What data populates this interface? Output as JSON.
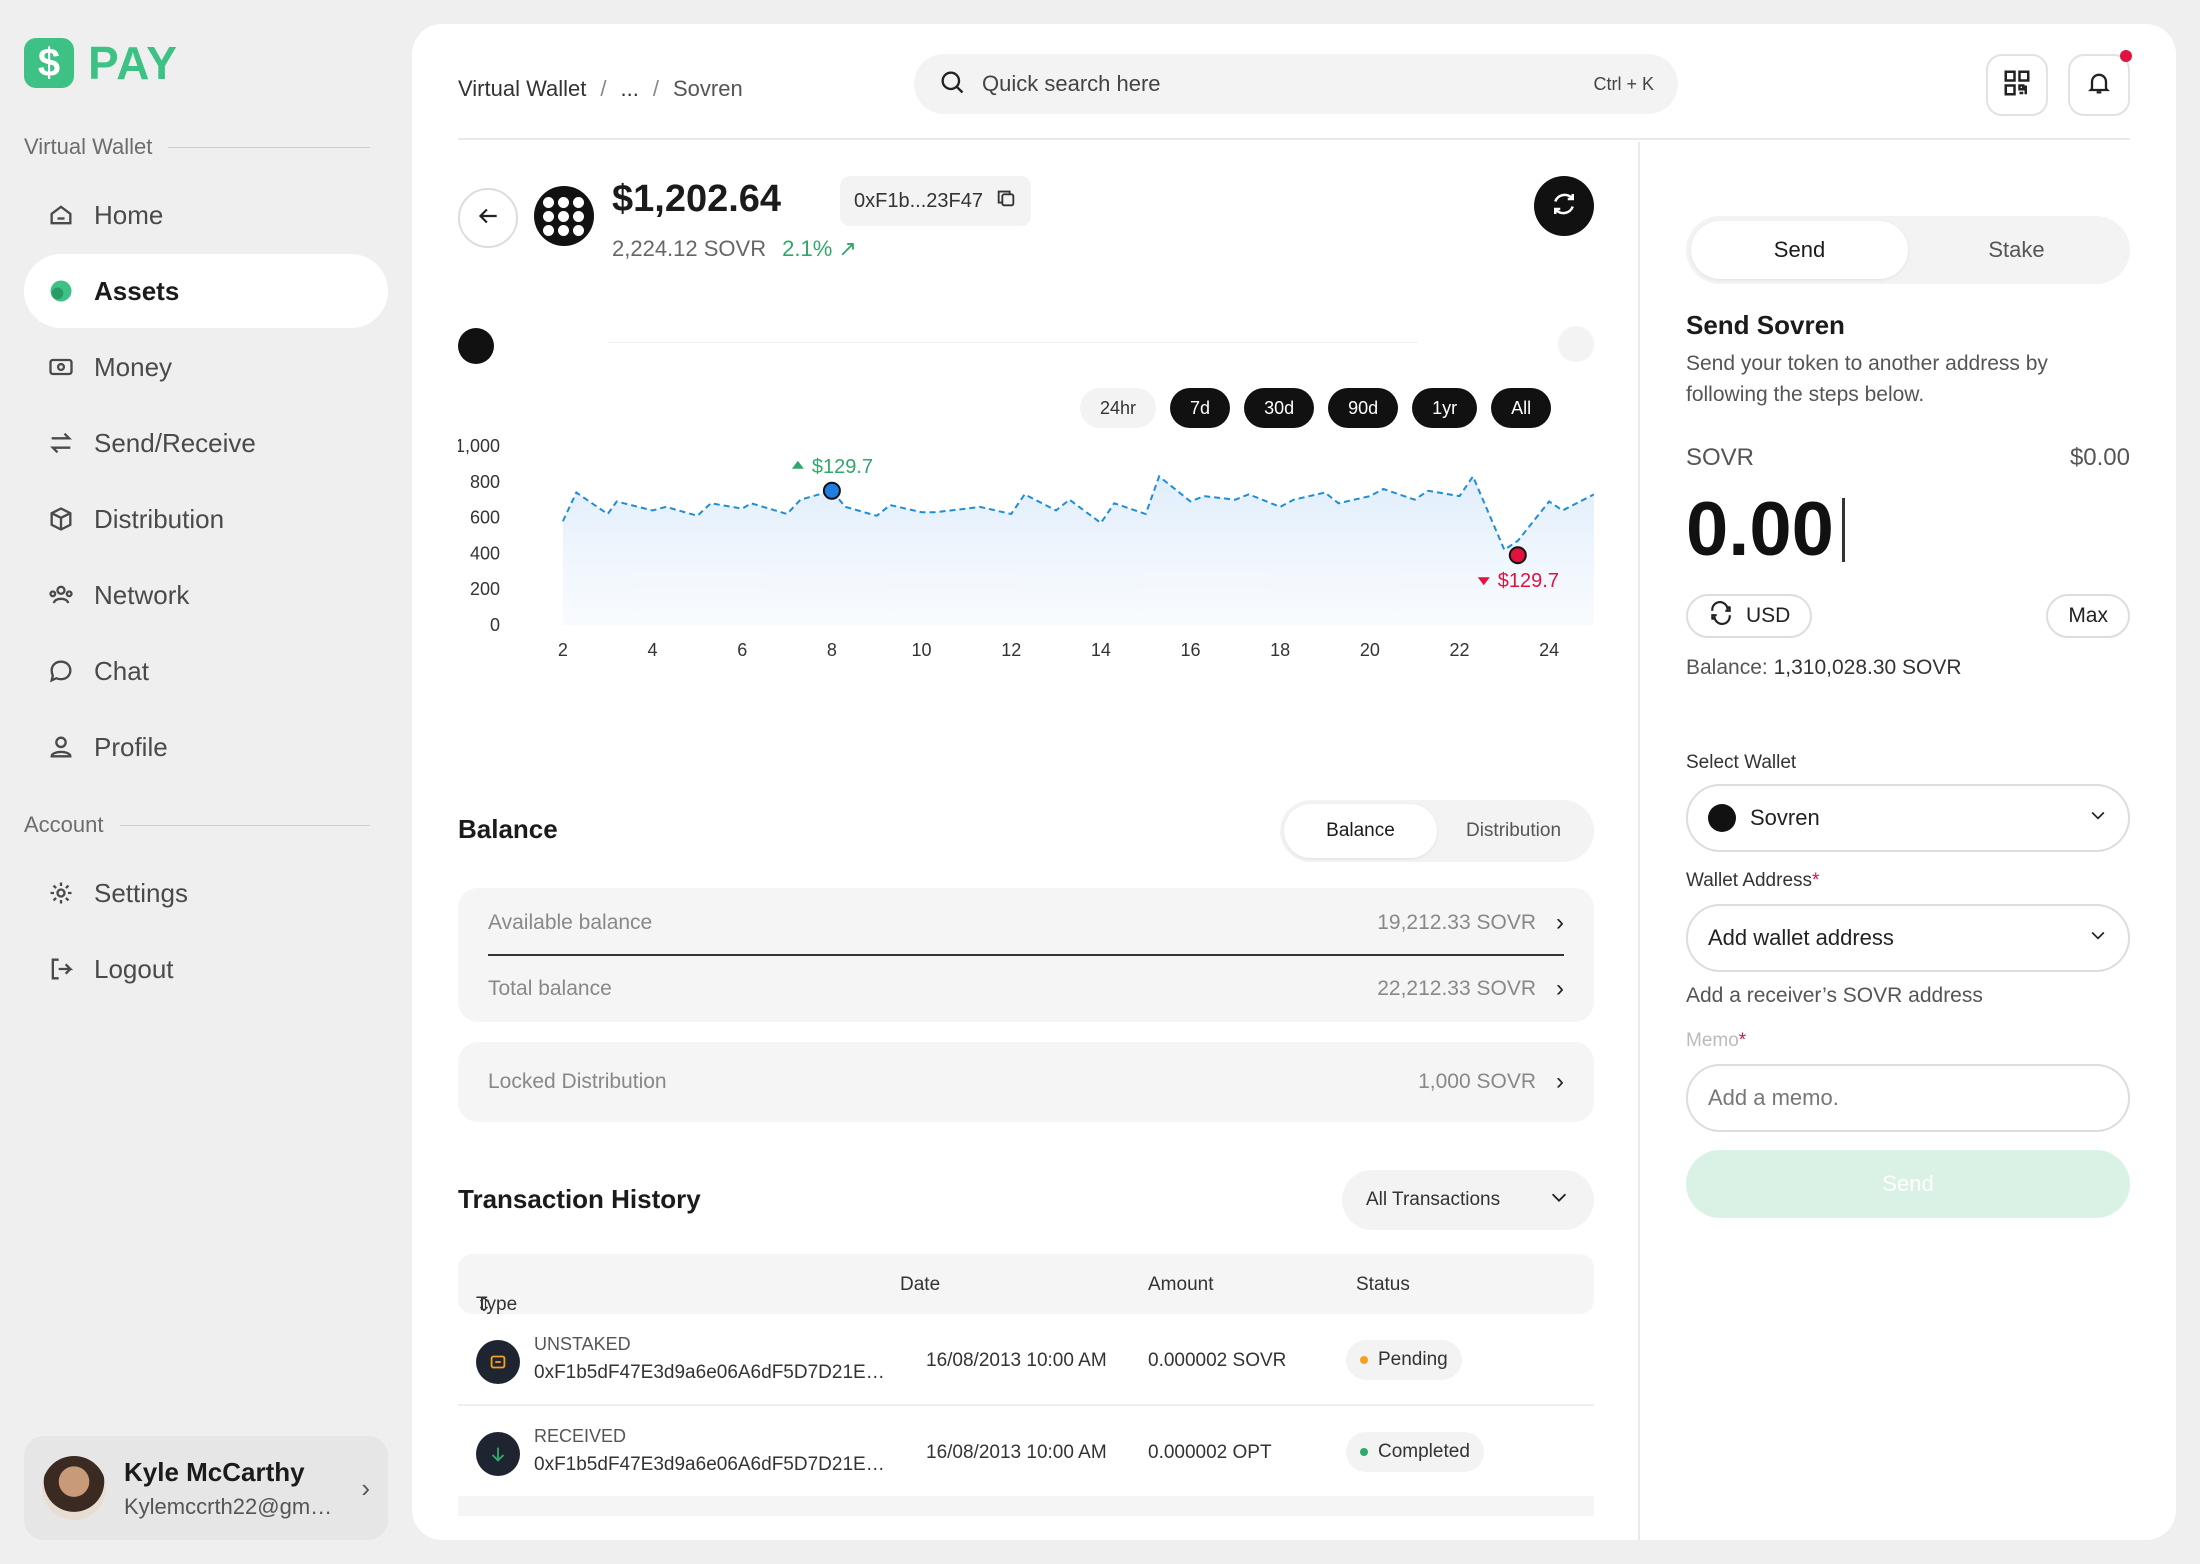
{
  "brand": {
    "badge": "$",
    "name": "PAY",
    "color": "#3ec184"
  },
  "sidebar": {
    "section_wallet": "Virtual Wallet",
    "items": [
      {
        "label": "Home",
        "icon": "home-icon"
      },
      {
        "label": "Assets",
        "icon": "assets-icon",
        "active": true
      },
      {
        "label": "Money",
        "icon": "money-icon"
      },
      {
        "label": "Send/Receive",
        "icon": "transfer-icon"
      },
      {
        "label": "Distribution",
        "icon": "box-icon"
      },
      {
        "label": "Network",
        "icon": "network-icon"
      },
      {
        "label": "Chat",
        "icon": "chat-icon"
      },
      {
        "label": "Profile",
        "icon": "user-icon"
      }
    ],
    "section_account": "Account",
    "account_items": [
      {
        "label": "Settings",
        "icon": "gear-icon"
      },
      {
        "label": "Logout",
        "icon": "logout-icon"
      }
    ],
    "user": {
      "name": "Kyle McCarthy",
      "email": "Kylemccrth22@gmai..."
    }
  },
  "header": {
    "breadcrumb": [
      "Virtual Wallet",
      "...",
      "Sovren"
    ],
    "search_placeholder": "Quick search here",
    "shortcut": "Ctrl + K"
  },
  "asset": {
    "price": "$1,202.64",
    "address": "0xF1b...23F47",
    "amount": "2,224.12 SOVR",
    "change": "2.1%",
    "ranges": [
      "24hr",
      "7d",
      "30d",
      "90d",
      "1yr",
      "All"
    ],
    "active_range": "24hr"
  },
  "chart_data": {
    "type": "line",
    "x_ticks": [
      2,
      4,
      6,
      8,
      10,
      12,
      14,
      16,
      18,
      20,
      22,
      24
    ],
    "y_ticks": [
      0,
      200,
      400,
      600,
      800,
      1000
    ],
    "ylim": [
      0,
      1000
    ],
    "xlim": [
      1.4,
      25
    ],
    "series": [
      {
        "x": [
          2,
          2.3,
          3,
          3.2,
          4,
          4.3,
          5,
          5.3,
          6,
          6.2,
          7,
          7.3,
          8,
          8.3,
          9,
          9.3,
          10,
          10.3,
          11,
          11.3,
          12,
          12.3,
          13,
          13.3,
          14,
          14.3,
          15,
          15.3,
          16,
          16.3,
          17,
          17.3,
          18,
          18.3,
          19,
          19.3,
          20,
          20.3,
          21,
          21.3,
          22,
          22.3,
          23,
          23.3,
          24,
          24.3,
          25
        ],
        "y": [
          580,
          740,
          620,
          690,
          640,
          660,
          610,
          680,
          650,
          680,
          620,
          700,
          750,
          660,
          610,
          670,
          630,
          630,
          650,
          660,
          620,
          730,
          640,
          700,
          570,
          680,
          620,
          830,
          690,
          720,
          700,
          730,
          660,
          700,
          740,
          680,
          720,
          760,
          700,
          750,
          720,
          830,
          420,
          470,
          690,
          640,
          730
        ]
      }
    ],
    "annotations": [
      {
        "label": "$129.7",
        "x": 8,
        "y": 750,
        "kind": "high",
        "color": "#2ea96b"
      },
      {
        "label": "$129.7",
        "x": 23.3,
        "y": 390,
        "kind": "low",
        "color": "#e0133f"
      }
    ],
    "line_color": "#1f8ed8"
  },
  "balance": {
    "title": "Balance",
    "tabs": [
      "Balance",
      "Distribution"
    ],
    "rows": [
      {
        "label": "Available balance",
        "value": "19,212.33 SOVR"
      },
      {
        "label": "Total balance",
        "value": "22,212.33 SOVR"
      }
    ],
    "locked": {
      "label": "Locked Distribution",
      "value": "1,000 SOVR"
    }
  },
  "transactions": {
    "title": "Transaction History",
    "filter": "All Transactions",
    "columns": [
      "Type",
      "Date",
      "Amount",
      "Status"
    ],
    "rows": [
      {
        "type": "UNSTAKED",
        "hash": "0xF1b5dF47E3d9a6e06A6dF5D7D21E5...",
        "date": "16/08/2013 10:00 AM",
        "amount": "0.000002 SOVR",
        "status": "Pending",
        "status_color": "#f5a020",
        "icon": "unstake-icon"
      },
      {
        "type": "RECEIVED",
        "hash": "0xF1b5dF47E3d9a6e06A6dF5D7D21E5...",
        "date": "16/08/2013 10:00 AM",
        "amount": "0.000002 OPT",
        "status": "Completed",
        "status_color": "#2ea96b",
        "icon": "arrow-down-icon"
      }
    ]
  },
  "send_panel": {
    "tabs": [
      "Send",
      "Stake"
    ],
    "title": "Send Sovren",
    "description": "Send your token to another address by following the steps below.",
    "token": "SOVR",
    "fiat_value": "$0.00",
    "amount": "0.00",
    "currency_toggle": "USD",
    "max_label": "Max",
    "balance_label": "Balance:",
    "balance_value": "1,310,028.30 SOVR",
    "wallet_label": "Select Wallet",
    "wallet_value": "Sovren",
    "address_label": "Wallet Address",
    "address_value": "Add wallet address",
    "address_hint": "Add a receiver’s SOVR address",
    "memo_label": "Memo",
    "memo_placeholder": "Add a memo.",
    "send_label": "Send"
  }
}
